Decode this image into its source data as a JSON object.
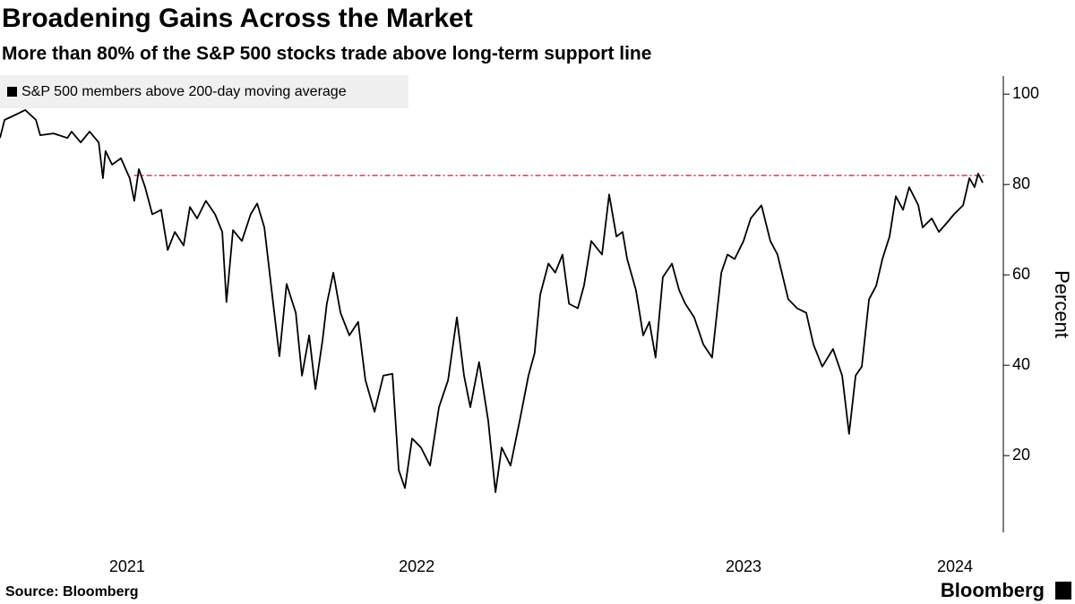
{
  "chart_data": {
    "type": "line",
    "title": "Broadening Gains Across the Market",
    "subtitle": "More than 80% of the S&P 500 stocks trade above long-term support line",
    "y_label": "Percent",
    "source": "Source: Bloomberg",
    "brand": "Bloomberg",
    "legend": "top-left",
    "x": [
      2021.22,
      2021.234,
      2021.275,
      2021.297,
      2021.33,
      2021.343,
      2021.384,
      2021.426,
      2021.439,
      2021.467,
      2021.494,
      2021.522,
      2021.535,
      2021.543,
      2021.563,
      2021.59,
      2021.617,
      2021.631,
      2021.645,
      2021.664,
      2021.686,
      2021.713,
      2021.733,
      2021.755,
      2021.782,
      2021.801,
      2021.823,
      2021.85,
      2021.878,
      2021.9,
      2021.913,
      2021.933,
      2021.96,
      2021.987,
      2022.007,
      2022.029,
      2022.056,
      2022.075,
      2022.097,
      2022.125,
      2022.144,
      2022.166,
      2022.185,
      2022.207,
      2022.22,
      2022.24,
      2022.262,
      2022.289,
      2022.316,
      2022.338,
      2022.366,
      2022.393,
      2022.421,
      2022.44,
      2022.459,
      2022.481,
      2022.508,
      2022.536,
      2022.563,
      2022.591,
      2022.618,
      2022.64,
      2022.659,
      2022.686,
      2022.714,
      2022.736,
      2022.755,
      2022.782,
      2022.81,
      2022.837,
      2022.856,
      2022.873,
      2022.898,
      2022.919,
      2022.941,
      2022.961,
      2022.988,
      2023.007,
      2023.029,
      2023.062,
      2023.084,
      2023.106,
      2023.125,
      2023.139,
      2023.166,
      2023.188,
      2023.207,
      2023.226,
      2023.248,
      2023.276,
      2023.298,
      2023.317,
      2023.344,
      2023.372,
      2023.399,
      2023.427,
      2023.446,
      2023.468,
      2023.495,
      2023.517,
      2023.55,
      2023.577,
      2023.599,
      2023.632,
      2023.659,
      2023.687,
      2023.709,
      2023.736,
      2023.769,
      2023.797,
      2023.818,
      2023.838,
      2023.857,
      2023.879,
      2023.901,
      2023.92,
      2023.942,
      2023.961,
      2023.983,
      2024.002,
      2024.03,
      2024.043,
      2024.071,
      2024.093,
      2024.117,
      2024.139,
      2024.167,
      2024.186,
      2024.202,
      2024.213,
      2024.227
    ],
    "series": [
      {
        "name": "S&P 500 members above 200-day moving average",
        "color": "#000000",
        "values": [
          90.3,
          94.3,
          95.7,
          96.5,
          94.3,
          90.9,
          91.3,
          90.3,
          91.7,
          89.3,
          91.7,
          89.3,
          81.4,
          87.4,
          84.4,
          85.8,
          81.4,
          76.4,
          83.4,
          79.4,
          73.4,
          74.4,
          65.5,
          69.5,
          66.5,
          75.0,
          72.5,
          76.4,
          73.4,
          69.5,
          54.0,
          69.9,
          67.5,
          73.4,
          75.8,
          70.5,
          53.6,
          42.0,
          58.0,
          51.6,
          37.7,
          46.6,
          34.7,
          45.6,
          53.6,
          60.5,
          51.6,
          46.6,
          49.6,
          36.7,
          29.7,
          37.7,
          38.1,
          16.8,
          12.8,
          23.8,
          21.8,
          17.8,
          30.7,
          36.7,
          50.6,
          37.7,
          30.7,
          40.7,
          27.7,
          11.9,
          21.8,
          17.8,
          27.7,
          37.7,
          42.7,
          55.6,
          62.5,
          60.5,
          64.5,
          53.6,
          52.6,
          57.6,
          67.5,
          64.5,
          77.8,
          68.5,
          69.5,
          63.5,
          56.6,
          46.6,
          49.6,
          41.7,
          59.5,
          62.5,
          56.6,
          53.6,
          50.6,
          44.6,
          41.7,
          60.5,
          64.5,
          63.5,
          67.5,
          72.5,
          75.4,
          67.5,
          64.5,
          54.6,
          52.6,
          51.6,
          44.6,
          39.7,
          43.6,
          37.7,
          24.8,
          37.7,
          39.7,
          54.6,
          57.6,
          63.5,
          68.5,
          77.4,
          74.4,
          79.4,
          75.4,
          70.5,
          72.5,
          69.5,
          71.5,
          73.4,
          75.4,
          81.4,
          79.4,
          82.4,
          80.4
        ]
      }
    ],
    "reference_line": {
      "value": 82,
      "x": [
        2021.63,
        2024.24
      ],
      "color": "#e8334a"
    },
    "xlim": [
      2021.22,
      2024.29
    ],
    "xticks": [
      {
        "value": 2021.609,
        "label": "2021"
      },
      {
        "value": 2022.495,
        "label": "2022"
      },
      {
        "value": 2023.495,
        "label": "2023"
      },
      {
        "value": 2024.142,
        "label": "2024"
      }
    ],
    "ylim": [
      3,
      104
    ],
    "yticks": [
      20,
      40,
      60,
      80,
      100
    ]
  }
}
